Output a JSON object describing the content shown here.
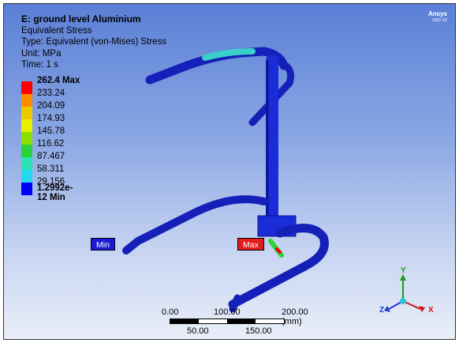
{
  "header": {
    "title": "E: ground level Aluminium",
    "lines": [
      "Equivalent Stress",
      "Type: Equivalent (von-Mises) Stress",
      "Unit: MPa",
      "Time: 1 s"
    ]
  },
  "brand": {
    "name": "Ansys",
    "version": "2022 R2"
  },
  "legend": {
    "items": [
      {
        "label": "262.4 Max",
        "color": "#ff0000"
      },
      {
        "label": "233.24",
        "color": "#ff8c00"
      },
      {
        "label": "204.09",
        "color": "#f0c800"
      },
      {
        "label": "174.93",
        "color": "#e8f000"
      },
      {
        "label": "145.78",
        "color": "#8ce000"
      },
      {
        "label": "116.62",
        "color": "#2ad43c"
      },
      {
        "label": "87.467",
        "color": "#2ee0b4"
      },
      {
        "label": "58.311",
        "color": "#28d8f0"
      },
      {
        "label": "29.156",
        "color": "#1e90ff"
      }
    ],
    "min_label": "1.2992e-12 Min",
    "min_color": "#0000ff"
  },
  "probes": {
    "min": "Min",
    "max": "Max"
  },
  "scale_bar": {
    "top_labels": [
      "0.00",
      "100.00",
      "200.00 (mm)"
    ],
    "bottom_labels": [
      "50.00",
      "150.00"
    ]
  },
  "triad": {
    "y": "Y",
    "z": "Z",
    "x": "X"
  },
  "colors": {
    "structure": "#1a2bd8",
    "max": "#ff0000",
    "min": "#0000ff"
  }
}
